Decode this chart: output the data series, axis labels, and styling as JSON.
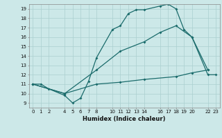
{
  "xlabel": "Humidex (Indice chaleur)",
  "bg_color": "#cce8e8",
  "line_color": "#1a6b6b",
  "grid_color": "#aacfcf",
  "xlim": [
    -0.5,
    23.5
  ],
  "ylim": [
    8.5,
    19.5
  ],
  "xticks": [
    0,
    1,
    2,
    4,
    5,
    6,
    7,
    8,
    10,
    11,
    12,
    13,
    14,
    16,
    17,
    18,
    19,
    20,
    22,
    23
  ],
  "yticks": [
    9,
    10,
    11,
    12,
    13,
    14,
    15,
    16,
    17,
    18,
    19
  ],
  "line1_x": [
    0,
    1,
    2,
    4,
    5,
    6,
    7,
    8,
    10,
    11,
    12,
    13,
    14,
    16,
    17,
    18,
    19,
    20,
    22,
    23
  ],
  "line1_y": [
    11,
    11,
    10.5,
    9.8,
    9.0,
    9.5,
    11.3,
    13.8,
    16.8,
    17.2,
    18.5,
    18.9,
    18.9,
    19.3,
    19.5,
    19.0,
    16.8,
    16.0,
    12.0,
    12.0
  ],
  "line2_x": [
    0,
    4,
    8,
    11,
    14,
    16,
    18,
    20,
    22
  ],
  "line2_y": [
    11,
    10.0,
    12.5,
    14.5,
    15.5,
    16.5,
    17.2,
    16.0,
    12.5
  ],
  "line3_x": [
    0,
    4,
    8,
    11,
    14,
    18,
    20,
    22
  ],
  "line3_y": [
    11.0,
    10.0,
    11.0,
    11.2,
    11.5,
    11.8,
    12.2,
    12.5
  ]
}
